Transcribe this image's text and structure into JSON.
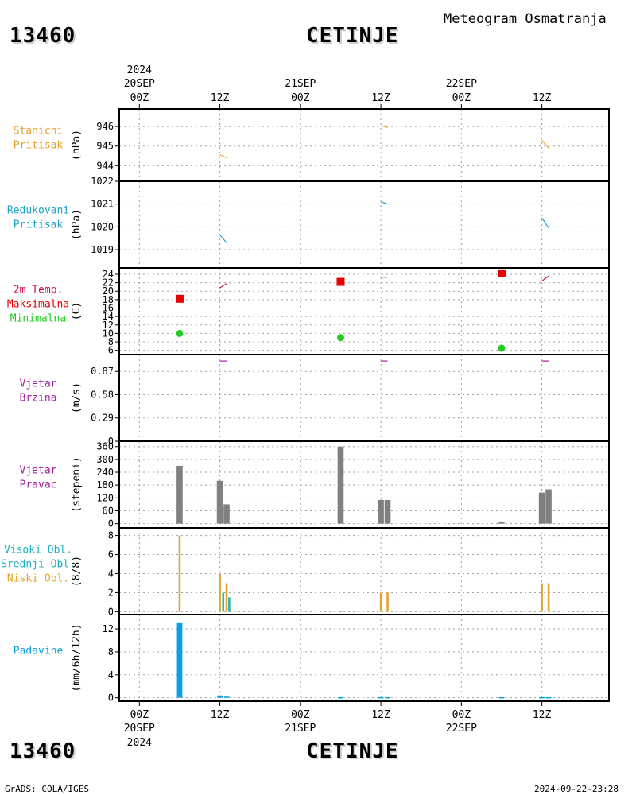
{
  "header": {
    "station_id": "13460",
    "station_name": "CETINJE",
    "product": "Meteogram Osmatranja",
    "footer_left": "GrADS: COLA/IGES",
    "footer_right": "2024-09-22-23:28"
  },
  "time_axis": {
    "year": "2024",
    "ticks": [
      {
        "t": 0,
        "hour": "00Z",
        "date": "20SEP"
      },
      {
        "t": 12,
        "hour": "12Z",
        "date": ""
      },
      {
        "t": 24,
        "hour": "00Z",
        "date": "21SEP"
      },
      {
        "t": 36,
        "hour": "12Z",
        "date": ""
      },
      {
        "t": 48,
        "hour": "00Z",
        "date": "22SEP"
      },
      {
        "t": 60,
        "hour": "12Z",
        "date": ""
      }
    ],
    "range_hours": [
      -3,
      70
    ]
  },
  "colors": {
    "orange": "#e8a02a",
    "cyan": "#1aa3c8",
    "temp": "#d4145a",
    "red": "#e60000",
    "green": "#22cc22",
    "purple": "#a020a0",
    "gray": "#808080",
    "high_cloud": "#1ab0c0",
    "mid_cloud": "#20c080",
    "low_cloud": "#e8a02a",
    "precip": "#0aa0e8",
    "grid": "#a0a0a0"
  },
  "chart_data": [
    {
      "id": "pressure_station",
      "type": "line",
      "labels": [
        "Stanicni",
        "Pritisak"
      ],
      "unit": "(hPa)",
      "ylim": [
        943.2,
        946.9
      ],
      "yticks": [
        944,
        945,
        946
      ],
      "series": [
        {
          "color_key": "orange",
          "segments": [
            [
              [
                12,
                944.55
              ],
              [
                13,
                944.4
              ]
            ],
            [
              [
                36,
                946.05
              ],
              [
                37,
                945.95
              ]
            ],
            [
              [
                60,
                945.3
              ],
              [
                61,
                944.9
              ]
            ]
          ]
        }
      ]
    },
    {
      "id": "pressure_reduced",
      "type": "line",
      "labels": [
        "Redukovani",
        "Pritisak"
      ],
      "unit": "(hPa)",
      "ylim": [
        1018.2,
        1022.0
      ],
      "yticks": [
        1019,
        1020,
        1021,
        1022
      ],
      "series": [
        {
          "color_key": "cyan",
          "segments": [
            [
              [
                12,
                1019.65
              ],
              [
                13,
                1019.3
              ]
            ],
            [
              [
                36,
                1021.1
              ],
              [
                37,
                1021.0
              ]
            ],
            [
              [
                60,
                1020.4
              ],
              [
                61,
                1019.95
              ]
            ]
          ]
        }
      ]
    },
    {
      "id": "temperature",
      "type": "line",
      "labels": [
        "2m Temp.",
        "Maksimalna",
        "Minimalna"
      ],
      "label_colors": [
        "temp",
        "red",
        "green"
      ],
      "unit": "(C)",
      "ylim": [
        5,
        25.5
      ],
      "yticks": [
        6,
        8,
        10,
        12,
        14,
        16,
        18,
        20,
        22,
        24
      ],
      "series": [
        {
          "color_key": "temp",
          "segments": [
            [
              [
                12,
                20.8
              ],
              [
                13,
                21.8
              ]
            ],
            [
              [
                36,
                23.3
              ],
              [
                37,
                23.3
              ]
            ],
            [
              [
                60,
                22.4
              ],
              [
                61,
                23.6
              ]
            ]
          ]
        }
      ],
      "max_markers": [
        [
          6,
          18.2
        ],
        [
          30,
          22.2
        ],
        [
          54,
          24.2
        ]
      ],
      "min_markers": [
        [
          6,
          10.0
        ],
        [
          30,
          9.0
        ],
        [
          54,
          6.5
        ]
      ]
    },
    {
      "id": "wind_speed",
      "type": "line",
      "labels": [
        "Vjetar",
        "Brzina"
      ],
      "unit": "(m/s)",
      "ylim": [
        0,
        1.08
      ],
      "yticks": [
        0,
        0.29,
        0.58,
        0.87
      ],
      "ytick_labels": [
        "0",
        "0.29",
        "0.58",
        "0.87"
      ],
      "series": [
        {
          "color_key": "purple",
          "segments": [
            [
              [
                12,
                1.0
              ],
              [
                13,
                1.0
              ]
            ],
            [
              [
                36,
                1.0
              ],
              [
                37,
                1.0
              ]
            ],
            [
              [
                60,
                1.0
              ],
              [
                61,
                1.0
              ]
            ]
          ]
        }
      ]
    },
    {
      "id": "wind_direction",
      "type": "bar",
      "labels": [
        "Vjetar",
        "Pravac"
      ],
      "unit": "(stepeni)",
      "ylim": [
        -20,
        385
      ],
      "yticks": [
        0,
        60,
        120,
        180,
        240,
        300,
        360
      ],
      "bar_width_hours": 0.9,
      "bars": [
        {
          "t": 6,
          "v": 270,
          "color_key": "gray"
        },
        {
          "t": 12,
          "v": 200,
          "color_key": "gray"
        },
        {
          "t": 13,
          "v": 90,
          "color_key": "gray"
        },
        {
          "t": 30,
          "v": 360,
          "color_key": "gray"
        },
        {
          "t": 36,
          "v": 110,
          "color_key": "gray"
        },
        {
          "t": 37,
          "v": 110,
          "color_key": "gray"
        },
        {
          "t": 54,
          "v": 10,
          "color_key": "gray"
        },
        {
          "t": 60,
          "v": 145,
          "color_key": "gray"
        },
        {
          "t": 61,
          "v": 160,
          "color_key": "gray"
        }
      ]
    },
    {
      "id": "clouds",
      "type": "bar",
      "labels": [
        "Visoki Obl.",
        "Srednji Obl.",
        "Niski Obl."
      ],
      "label_colors": [
        "high_cloud",
        "high_cloud",
        "low_cloud"
      ],
      "unit": "(8/8)",
      "ylim": [
        -0.3,
        8.8
      ],
      "yticks": [
        0,
        2,
        4,
        6,
        8
      ],
      "bar_width_hours": 0.3,
      "bars": [
        {
          "t": 6,
          "v": 8,
          "color_key": "low_cloud"
        },
        {
          "t": 12,
          "v": 4,
          "color_key": "low_cloud"
        },
        {
          "t": 12.5,
          "v": 2,
          "color_key": "mid_cloud"
        },
        {
          "t": 13,
          "v": 3,
          "color_key": "low_cloud"
        },
        {
          "t": 13.4,
          "v": 1.5,
          "color_key": "high_cloud"
        },
        {
          "t": 30,
          "v": 0.1,
          "color_key": "mid_cloud"
        },
        {
          "t": 36,
          "v": 2,
          "color_key": "low_cloud"
        },
        {
          "t": 37,
          "v": 2,
          "color_key": "low_cloud"
        },
        {
          "t": 54,
          "v": 0.1,
          "color_key": "mid_cloud"
        },
        {
          "t": 60,
          "v": 3,
          "color_key": "low_cloud"
        },
        {
          "t": 61,
          "v": 3,
          "color_key": "low_cloud"
        }
      ]
    },
    {
      "id": "precipitation",
      "type": "bar",
      "labels": [
        "Padavine"
      ],
      "unit": "(mm/6h/12h)",
      "ylim": [
        -0.6,
        14.5
      ],
      "yticks": [
        0,
        4,
        8,
        12
      ],
      "bar_width_hours": 0.8,
      "bars": [
        {
          "t": 6,
          "v": 13.0,
          "color_key": "precip"
        },
        {
          "t": 12,
          "v": 0.4,
          "color_key": "precip"
        },
        {
          "t": 13,
          "v": 0.2,
          "color_key": "precip"
        },
        {
          "t": 30,
          "v": 0.1,
          "color_key": "precip"
        },
        {
          "t": 36,
          "v": 0.1,
          "color_key": "precip"
        },
        {
          "t": 37,
          "v": 0.1,
          "color_key": "precip"
        },
        {
          "t": 54,
          "v": 0.1,
          "color_key": "precip"
        },
        {
          "t": 60,
          "v": 0.1,
          "color_key": "precip"
        },
        {
          "t": 61,
          "v": 0.1,
          "color_key": "precip"
        }
      ]
    }
  ]
}
